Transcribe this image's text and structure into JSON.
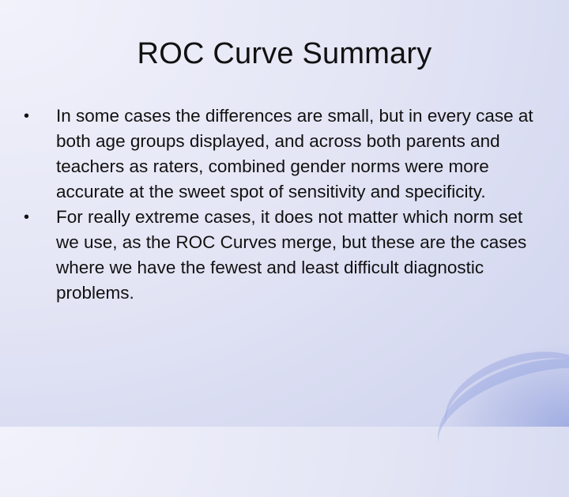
{
  "slide": {
    "title": "ROC Curve Summary",
    "bullet_symbol": "•",
    "bullets": [
      "In some cases the differences are small, but in every case at both age groups displayed, and across both parents and teachers as raters, combined gender norms were more accurate at the sweet spot of sensitivity and specificity.",
      "For really extreme cases, it does not matter which norm set we use, as the ROC Curves merge, but these are the cases where we have the fewest and least difficult diagnostic problems."
    ]
  },
  "colors": {
    "background_light": "#f2f2fb",
    "background_mid": "#e3e5f5",
    "accent_blue": "#8c9be0",
    "text": "#111111"
  }
}
